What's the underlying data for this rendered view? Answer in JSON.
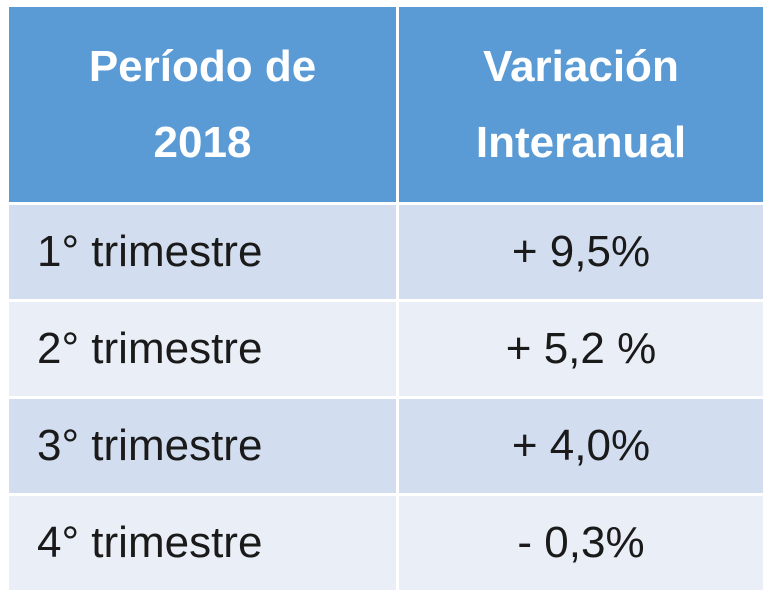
{
  "table": {
    "headers": {
      "period_line1": "Período de",
      "period_line2": "2018",
      "variation_line1": "Variación",
      "variation_line2": "Interanual"
    },
    "rows": [
      {
        "period": "1° trimestre",
        "value": "+ 9,5%"
      },
      {
        "period": "2° trimestre",
        "value": "+ 5,2 %"
      },
      {
        "period": "3° trimestre",
        "value": "+ 4,0%"
      },
      {
        "period": "4° trimestre",
        "value": "- 0,3%"
      }
    ]
  },
  "colors": {
    "header_bg": "#5b9bd5",
    "row_odd_bg": "#d2deef",
    "row_even_bg": "#eaeff7",
    "border": "#ffffff"
  }
}
